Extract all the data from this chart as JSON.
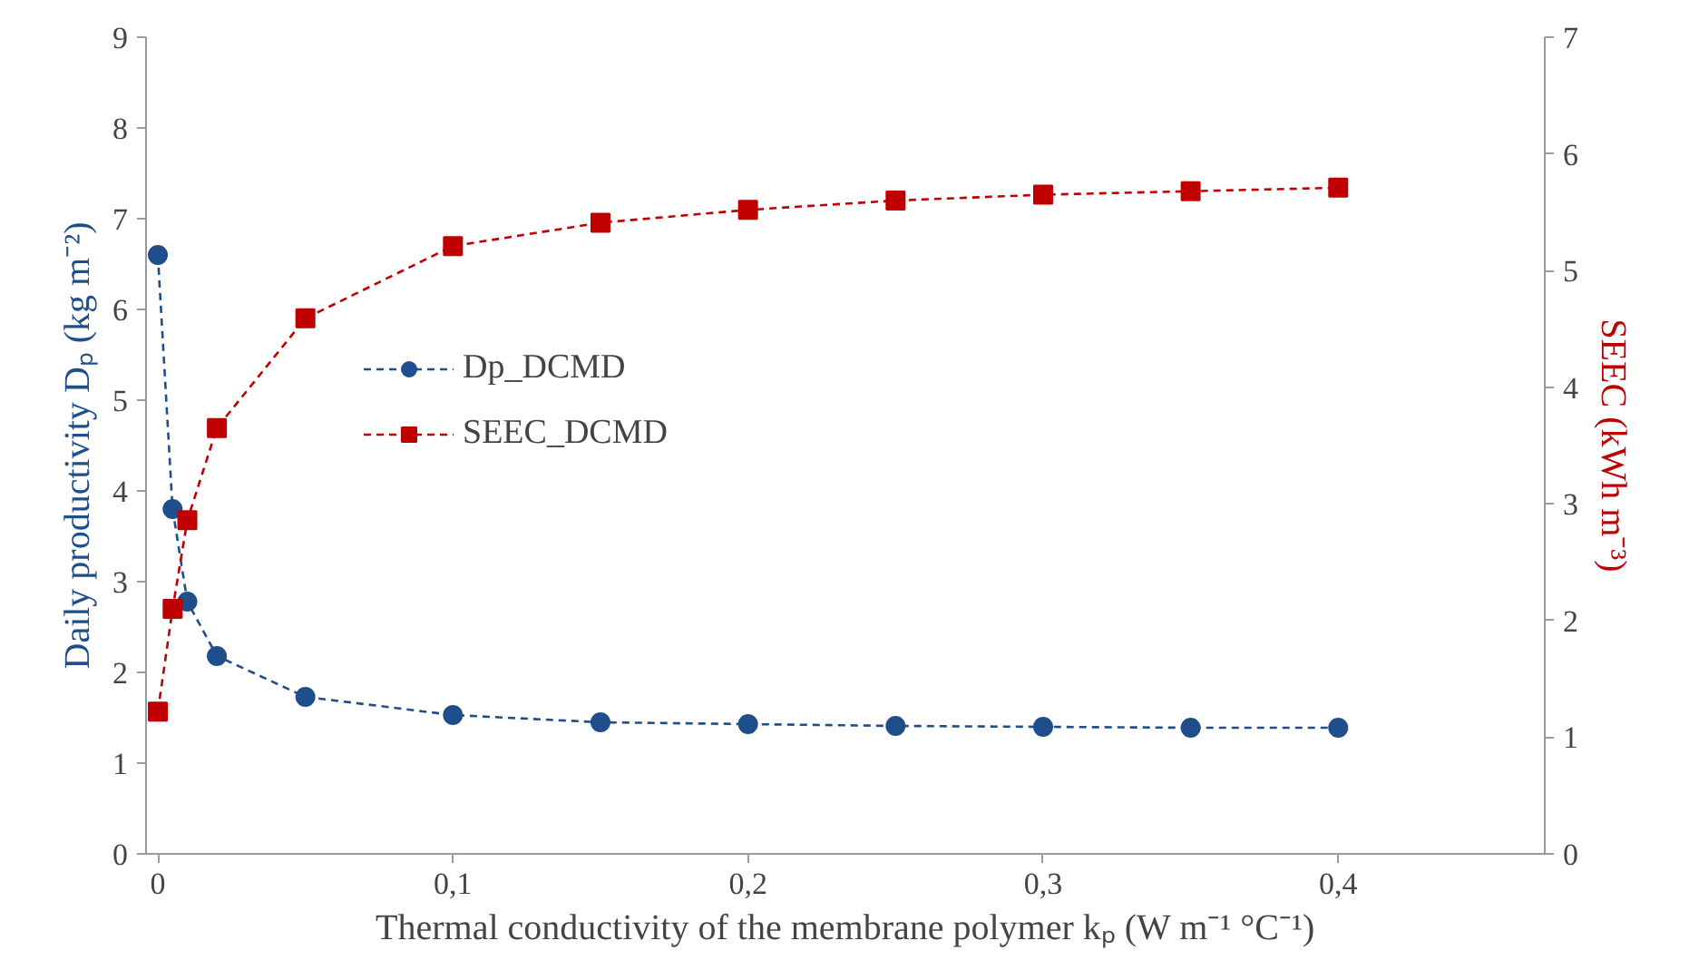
{
  "chart_data": {
    "type": "line",
    "xlabel": "Thermal conductivity of the membrane polymer kₚ (W m⁻¹ °C⁻¹)",
    "ylabel": "Daily productivity Dₚ (kg m⁻²)",
    "y2label": "SEEC (kWh m⁻³)",
    "x": [
      0,
      0.005,
      0.01,
      0.02,
      0.05,
      0.1,
      0.15,
      0.2,
      0.25,
      0.3,
      0.35,
      0.4
    ],
    "series": [
      {
        "name": "Dp_DCMD",
        "color": "#1f4e8c",
        "marker": "circle",
        "values": [
          6.6,
          3.8,
          2.78,
          2.18,
          1.73,
          1.53,
          1.45,
          1.43,
          1.41,
          1.4,
          1.39,
          1.39
        ]
      },
      {
        "name": "SEEC_DCMD",
        "color": "#c00000",
        "marker": "square",
        "axis": "y2",
        "values": [
          1.22,
          2.1,
          2.86,
          3.65,
          4.59,
          5.21,
          5.41,
          5.52,
          5.6,
          5.65,
          5.68,
          5.71
        ]
      }
    ],
    "line_style": "dashed",
    "xlim": [
      -0.004,
      0.47
    ],
    "xticks": [
      0,
      {
        "value": 0.1,
        "label": "0,1"
      },
      {
        "value": 0.2,
        "label": "0,2"
      },
      {
        "value": 0.3,
        "label": "0,3"
      },
      {
        "value": 0.4,
        "label": "0,4"
      }
    ],
    "ylim": [
      0,
      9
    ],
    "yticks": [
      0,
      1,
      2,
      3,
      4,
      5,
      6,
      7,
      8,
      9
    ],
    "y2lim": [
      0,
      7
    ],
    "y2ticks": [
      0,
      1,
      2,
      3,
      4,
      5,
      6,
      7
    ],
    "grid": false,
    "legend": "left"
  }
}
